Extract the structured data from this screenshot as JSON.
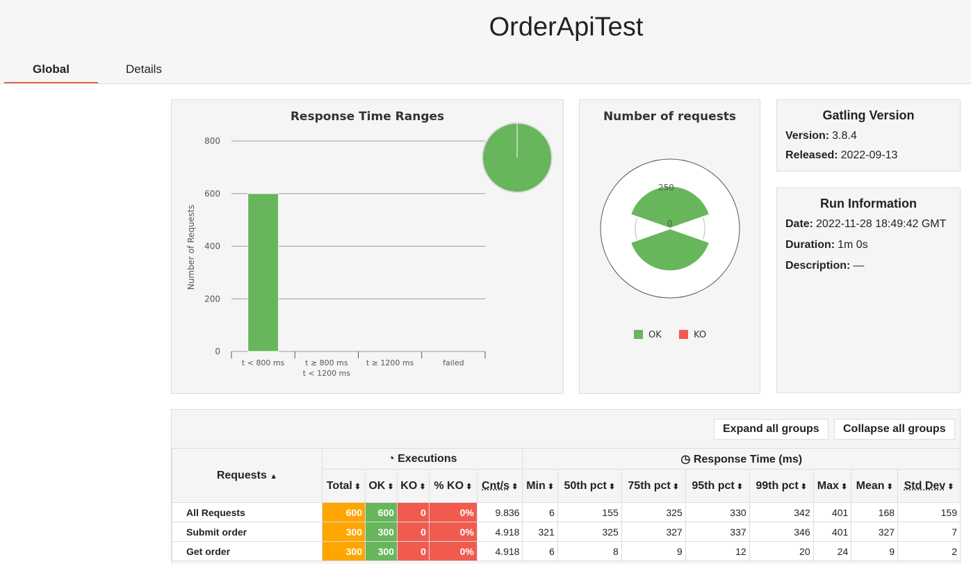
{
  "app": {
    "title": "OrderApiTest"
  },
  "tabs": [
    {
      "label": "Global"
    },
    {
      "label": "Details"
    }
  ],
  "response_time_ranges": {
    "title": "Response Time Ranges",
    "ylabel": "Number of Requests"
  },
  "number_of_requests": {
    "title": "Number of requests",
    "legend": [
      {
        "label": "OK",
        "color": "#68b65c"
      },
      {
        "label": "KO",
        "color": "#f15b4f"
      }
    ]
  },
  "gatling": {
    "title": "Gatling Version",
    "version_label": "Version:",
    "version": "3.8.4",
    "released_label": "Released:",
    "released": "2022-09-13"
  },
  "run_info": {
    "title": "Run Information",
    "date_label": "Date:",
    "date": "2022-11-28 18:49:42 GMT",
    "duration_label": "Duration:",
    "duration": "1m 0s",
    "description_label": "Description:",
    "description": "—"
  },
  "stats": {
    "expand_label": "Expand all groups",
    "collapse_label": "Collapse all groups",
    "headers": {
      "requests": "Requests",
      "executions": "Executions",
      "response_time": "Response Time (ms)",
      "cols": [
        "Total",
        "OK",
        "KO",
        "% KO",
        "Cnt/s",
        "Min",
        "50th pct",
        "75th pct",
        "95th pct",
        "99th pct",
        "Max",
        "Mean",
        "Std Dev"
      ]
    },
    "rows": [
      {
        "name": "All Requests",
        "values": [
          "600",
          "600",
          "0",
          "0%",
          "9.836",
          "6",
          "155",
          "325",
          "330",
          "342",
          "401",
          "168",
          "159"
        ]
      },
      {
        "name": "Submit order",
        "values": [
          "300",
          "300",
          "0",
          "0%",
          "4.918",
          "321",
          "325",
          "327",
          "337",
          "346",
          "401",
          "327",
          "7"
        ]
      },
      {
        "name": "Get order",
        "values": [
          "300",
          "300",
          "0",
          "0%",
          "4.918",
          "6",
          "8",
          "9",
          "12",
          "20",
          "24",
          "9",
          "2"
        ]
      }
    ]
  },
  "chart_data": [
    {
      "type": "bar",
      "title": "Response Time Ranges",
      "ylabel": "Number of Requests",
      "categories": [
        "t < 800 ms",
        "t ≥ 800 ms\nt < 1200 ms",
        "t ≥ 1200 ms",
        "failed"
      ],
      "values": [
        600,
        0,
        0,
        0
      ],
      "yticks": [
        0,
        200,
        400,
        600,
        800
      ],
      "ylim": [
        0,
        800
      ],
      "color": "#68b65c"
    },
    {
      "type": "pie",
      "title": "Number of requests",
      "series": [
        {
          "name": "OK",
          "values": [
            300,
            300
          ]
        },
        {
          "name": "KO",
          "values": [
            0,
            0
          ]
        }
      ],
      "radial_ticks": [
        "0",
        "250"
      ]
    }
  ]
}
